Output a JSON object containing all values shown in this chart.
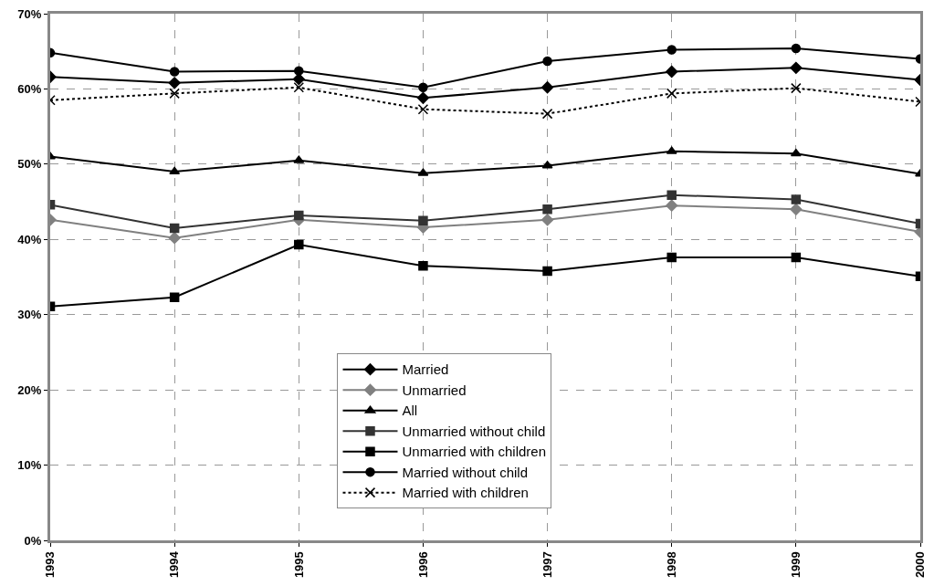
{
  "chart_data": {
    "type": "line",
    "x": [
      1993,
      1994,
      1995,
      1996,
      1997,
      1998,
      1999,
      2000
    ],
    "xlim": [
      1993,
      2000
    ],
    "xticks": [
      1993,
      1994,
      1995,
      1996,
      1997,
      1998,
      1999,
      2000
    ],
    "ylim": [
      0,
      70
    ],
    "yticks": [
      {
        "value": 0,
        "label": "0%"
      },
      {
        "value": 10,
        "label": "10%"
      },
      {
        "value": 20,
        "label": "20%"
      },
      {
        "value": 30,
        "label": "30%"
      },
      {
        "value": 40,
        "label": "40%"
      },
      {
        "value": 50,
        "label": "50%"
      },
      {
        "value": 60,
        "label": "60%"
      },
      {
        "value": 70,
        "label": "70%"
      }
    ],
    "grid": true,
    "legend": "bottom",
    "series": [
      {
        "name": "Married",
        "color": "#000000",
        "marker": "diamond",
        "line_style": "solid",
        "values": [
          61.6,
          60.8,
          61.3,
          58.8,
          60.2,
          62.3,
          62.8,
          61.2
        ]
      },
      {
        "name": "Unmarried",
        "color": "#808080",
        "marker": "diamond",
        "line_style": "solid",
        "values": [
          42.6,
          40.2,
          42.6,
          41.6,
          42.6,
          44.5,
          44.0,
          41.0
        ]
      },
      {
        "name": "All",
        "color": "#000000",
        "marker": "triangle",
        "line_style": "solid",
        "values": [
          51.0,
          49.0,
          50.5,
          48.8,
          49.8,
          51.7,
          51.4,
          48.7
        ]
      },
      {
        "name": "Unmarried without child",
        "color": "#333333",
        "marker": "square",
        "line_style": "solid",
        "values": [
          44.6,
          41.5,
          43.2,
          42.5,
          44.0,
          45.9,
          45.3,
          42.1
        ]
      },
      {
        "name": "Unmarried with children",
        "color": "#000000",
        "marker": "square",
        "line_style": "solid",
        "values": [
          31.1,
          32.3,
          39.3,
          36.5,
          35.8,
          37.6,
          37.6,
          35.1
        ]
      },
      {
        "name": "Married without child",
        "color": "#000000",
        "marker": "circle",
        "line_style": "solid",
        "values": [
          64.8,
          62.3,
          62.4,
          60.2,
          63.7,
          65.2,
          65.4,
          64.0
        ]
      },
      {
        "name": "Married with children",
        "color": "#000000",
        "marker": "cross",
        "line_style": "dotted",
        "values": [
          58.5,
          59.4,
          60.2,
          57.3,
          56.7,
          59.4,
          60.1,
          58.3
        ]
      }
    ]
  }
}
